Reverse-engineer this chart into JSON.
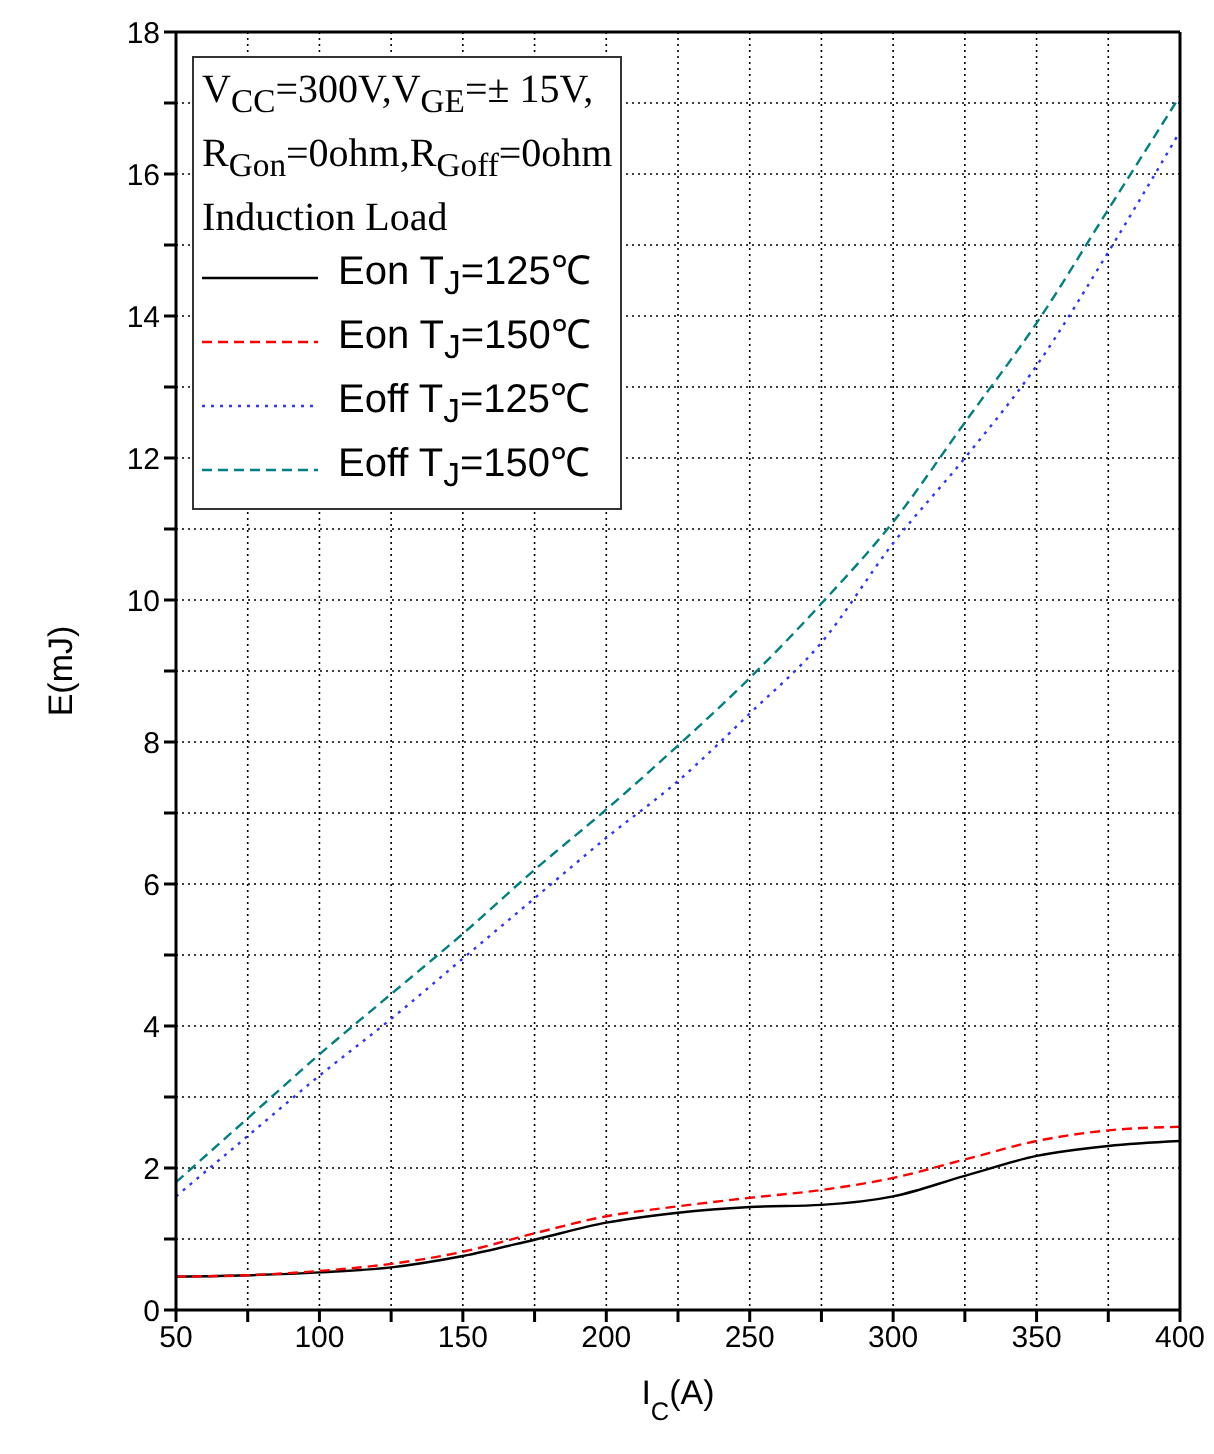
{
  "chart_data": {
    "type": "line",
    "xlabel": "I$_{C}$(A)",
    "ylabel": "E(mJ)",
    "x": [
      50,
      75,
      100,
      125,
      150,
      175,
      200,
      225,
      250,
      275,
      300,
      325,
      350,
      375,
      400
    ],
    "xlim": [
      50,
      400
    ],
    "xticks": [
      50,
      {
        "value": 75,
        "label": null
      },
      100,
      {
        "value": 125,
        "label": null
      },
      150,
      {
        "value": 175,
        "label": null
      },
      200,
      {
        "value": 225,
        "label": null
      },
      250,
      {
        "value": 275,
        "label": null
      },
      300,
      {
        "value": 325,
        "label": null
      },
      350,
      {
        "value": 375,
        "label": null
      },
      400
    ],
    "ylim": [
      0,
      18
    ],
    "yticks": [
      0,
      {
        "value": 1,
        "label": null
      },
      2,
      {
        "value": 3,
        "label": null
      },
      4,
      {
        "value": 5,
        "label": null
      },
      6,
      {
        "value": 7,
        "label": null
      },
      8,
      {
        "value": 9,
        "label": null
      },
      10,
      {
        "value": 11,
        "label": null
      },
      12,
      {
        "value": 13,
        "label": null
      },
      14,
      {
        "value": 15,
        "label": null
      },
      16,
      {
        "value": 17,
        "label": null
      },
      18
    ],
    "grid": true,
    "legend": "top left",
    "marker": "none",
    "annotations": [
      "V$_{CC}$=300V,V$_{GE}$=± 15V,",
      "R$_{Gon}$=0ohm,R$_{Goff}$=0ohm",
      "Induction Load"
    ],
    "series": [
      {
        "name": "Eon T$_{J}$=125℃",
        "color": "#000000",
        "line_style": "solid",
        "values": [
          0.47,
          0.49,
          0.53,
          0.6,
          0.76,
          0.99,
          1.23,
          1.37,
          1.45,
          1.48,
          1.6,
          1.89,
          2.17,
          2.31,
          2.38
        ]
      },
      {
        "name": "Eon T$_{J}$=150℃",
        "color": "#ff0000",
        "line_style": "dashed",
        "values": [
          0.47,
          0.49,
          0.55,
          0.65,
          0.82,
          1.08,
          1.32,
          1.46,
          1.58,
          1.69,
          1.86,
          2.12,
          2.38,
          2.53,
          2.58
        ]
      },
      {
        "name": "Eoff T$_{J}$=125℃",
        "color": "#3333ff",
        "line_style": "dotted",
        "values": [
          1.6,
          2.45,
          3.3,
          4.1,
          4.95,
          5.8,
          6.65,
          7.45,
          8.4,
          9.4,
          10.8,
          12.0,
          13.3,
          14.9,
          16.6
        ]
      },
      {
        "name": "Eoff T$_{J}$=150℃",
        "color": "#008080",
        "line_style": "dashed",
        "values": [
          1.8,
          2.7,
          3.6,
          4.45,
          5.3,
          6.2,
          7.05,
          7.95,
          8.9,
          9.95,
          11.1,
          12.5,
          13.9,
          15.5,
          17.1
        ]
      }
    ]
  }
}
